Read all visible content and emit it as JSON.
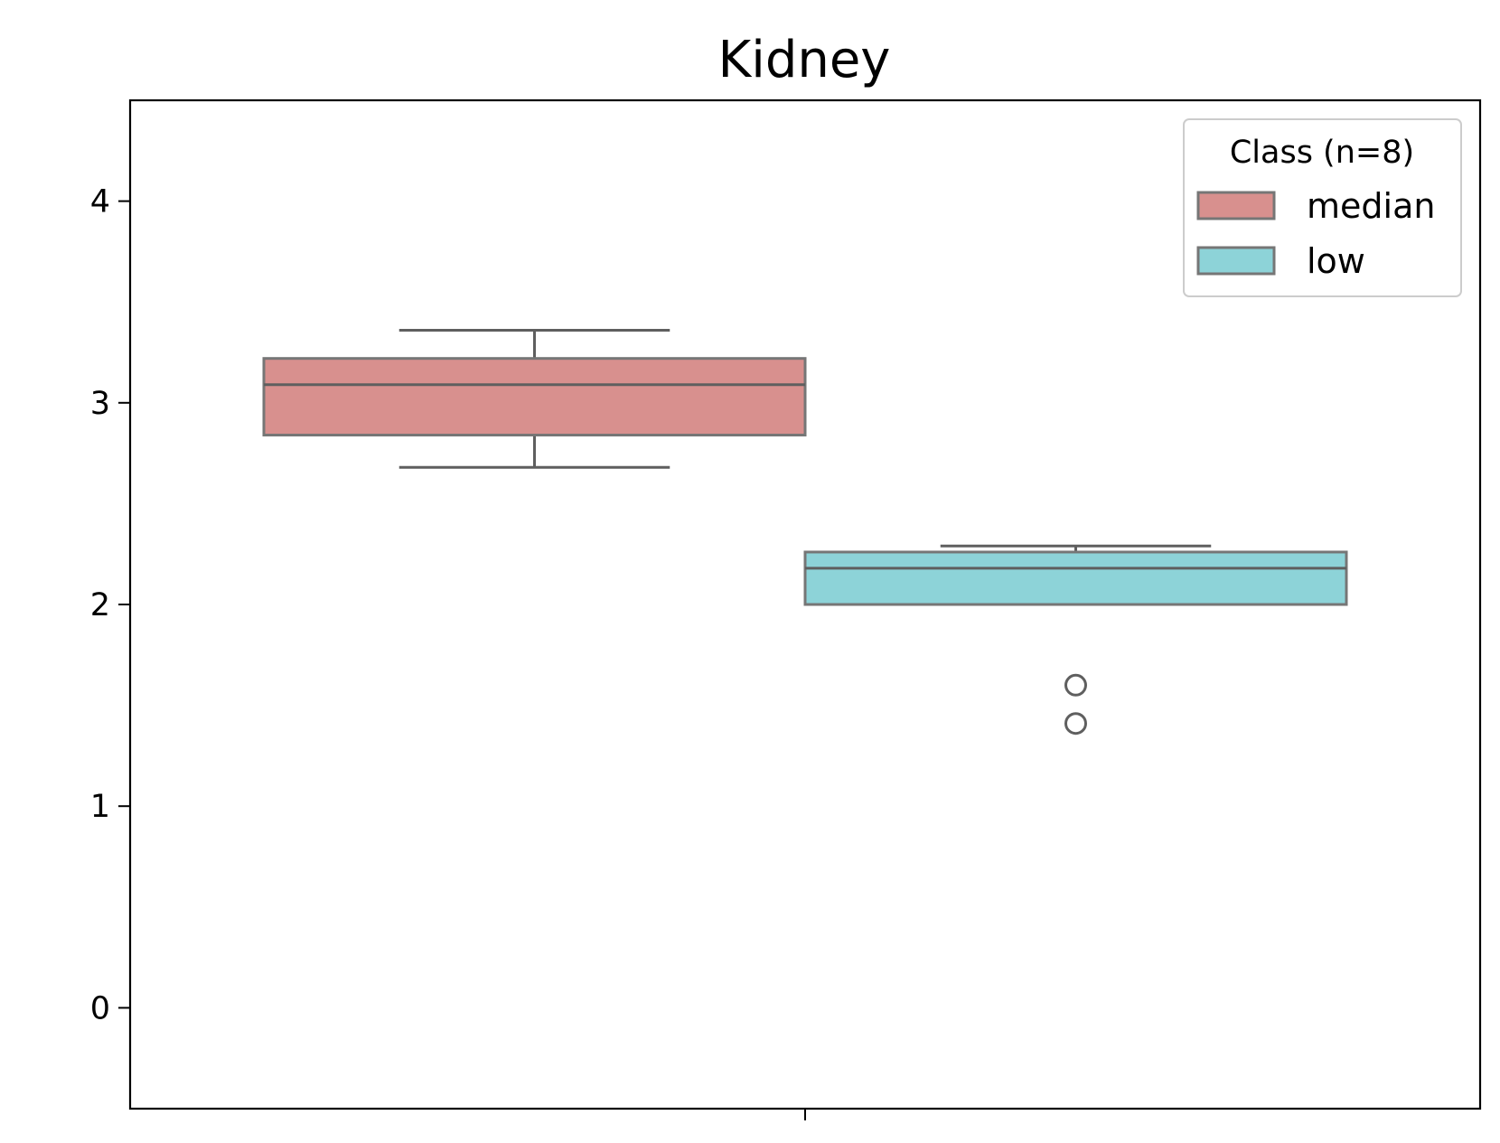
{
  "chart_data": {
    "type": "box",
    "title": "Kidney",
    "xlabel": "",
    "ylabel": "",
    "ylim": [
      -0.5,
      4.5
    ],
    "yticks": [
      0,
      1,
      2,
      3,
      4
    ],
    "ytick_labels": [
      "0",
      "1",
      "2",
      "3",
      "4"
    ],
    "grid": false,
    "legend": {
      "title": "Class (n=8)",
      "placement": "top-right"
    },
    "series": [
      {
        "name": "median",
        "color": "#d8908e",
        "whisker_low": 2.68,
        "q1": 2.84,
        "median": 3.09,
        "q3": 3.22,
        "whisker_high": 3.36,
        "outliers": []
      },
      {
        "name": "low",
        "color": "#8dd3d8",
        "whisker_low": 2.0,
        "q1": 2.0,
        "median": 2.18,
        "q3": 2.26,
        "whisker_high": 2.29,
        "outliers": [
          1.6,
          1.41
        ]
      }
    ]
  }
}
